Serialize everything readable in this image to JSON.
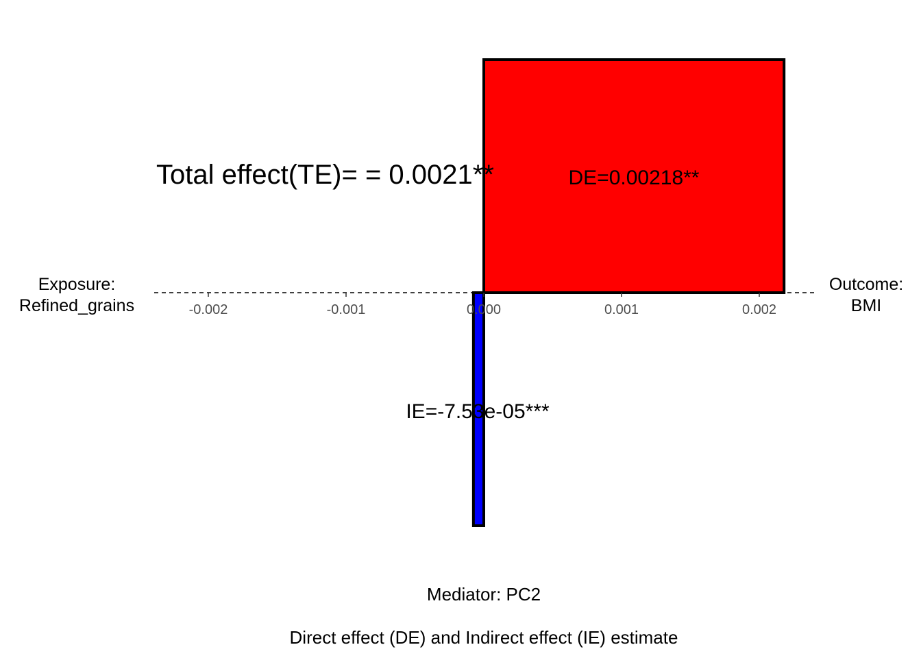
{
  "chart_data": {
    "type": "bar",
    "title": "",
    "total_effect_label": "Total effect(TE)= = 0.0021**",
    "exposure_label": [
      "Exposure:",
      "Refined_grains"
    ],
    "outcome_label": [
      "Outcome:",
      "BMI"
    ],
    "mediator_label": "Mediator: PC2",
    "caption": "Direct effect (DE) and Indirect effect (IE) estimate",
    "xlim": [
      -0.0024,
      0.0024
    ],
    "ticks": [
      -0.002,
      -0.001,
      0.0,
      0.001,
      0.002
    ],
    "tick_labels": [
      "-0.002",
      "-0.001",
      "0.000",
      "0.001",
      "0.002"
    ],
    "bars": [
      {
        "name": "DE",
        "value": 0.00218,
        "label": "DE=0.00218**",
        "color": "#ff0000",
        "direction": "up"
      },
      {
        "name": "IE",
        "value": -7.53e-05,
        "label": "IE=-7.53e-05***",
        "color": "#0000ff",
        "direction": "down"
      }
    ]
  }
}
